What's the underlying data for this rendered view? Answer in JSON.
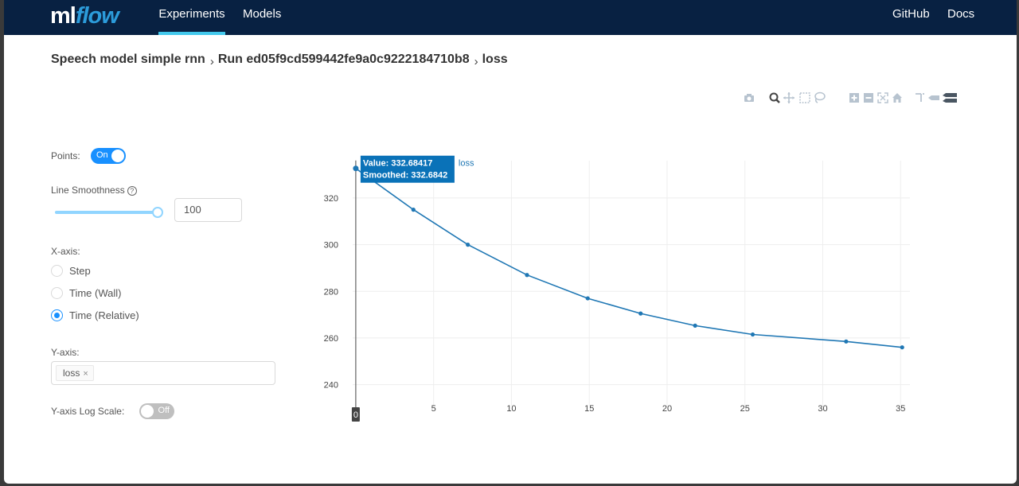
{
  "nav": {
    "logo_ml": "ml",
    "logo_flow": "flow",
    "experiments": "Experiments",
    "models": "Models",
    "github": "GitHub",
    "docs": "Docs"
  },
  "breadcrumb": {
    "experiment": "Speech model simple rnn",
    "run": "Run ed05f9cd599442fe9a0c9222184710b8",
    "metric": "loss",
    "separator": "›"
  },
  "toolbar_icons": [
    "camera-icon",
    "zoom-icon",
    "pan-icon",
    "box-select-icon",
    "lasso-select-icon",
    "zoom-in-icon",
    "zoom-out-icon",
    "autoscale-icon",
    "reset-axes-icon",
    "spike-lines-icon",
    "hover-closest-icon",
    "hover-compare-icon"
  ],
  "controls": {
    "points_label": "Points:",
    "points_toggle": "On",
    "smoothness_label": "Line Smoothness",
    "smoothness_value": "100",
    "smoothness_fraction": 1.0,
    "xaxis_label": "X-axis:",
    "xaxis_options": [
      "Step",
      "Time (Wall)",
      "Time (Relative)"
    ],
    "xaxis_selected": "Time (Relative)",
    "yaxis_label": "Y-axis:",
    "yaxis_tag": "loss",
    "yaxis_tag_close": "×",
    "log_scale_label": "Y-axis Log Scale:",
    "log_scale_toggle": "Off"
  },
  "chart_data": {
    "type": "line",
    "series": [
      {
        "name": "loss",
        "x": [
          0,
          3.7,
          7.2,
          11,
          14.9,
          18.3,
          21.8,
          25.5,
          31.5,
          35.1
        ],
        "values": [
          332.68417,
          315,
          300,
          287,
          277,
          270.5,
          265.3,
          261.5,
          258.5,
          256
        ]
      }
    ],
    "color": "#1f77b4",
    "xlim": [
      -0.2,
      35.6
    ],
    "ylim": [
      231,
      336
    ],
    "x_ticks": [
      0,
      5,
      10,
      15,
      20,
      25,
      30,
      35
    ],
    "y_ticks": [
      240,
      260,
      280,
      300,
      320
    ],
    "grid": true,
    "hover": {
      "value_text": "Value: 332.68417",
      "smoothed_text": "Smoothed: 332.6842",
      "series_label": "loss",
      "x_label": "0"
    }
  }
}
